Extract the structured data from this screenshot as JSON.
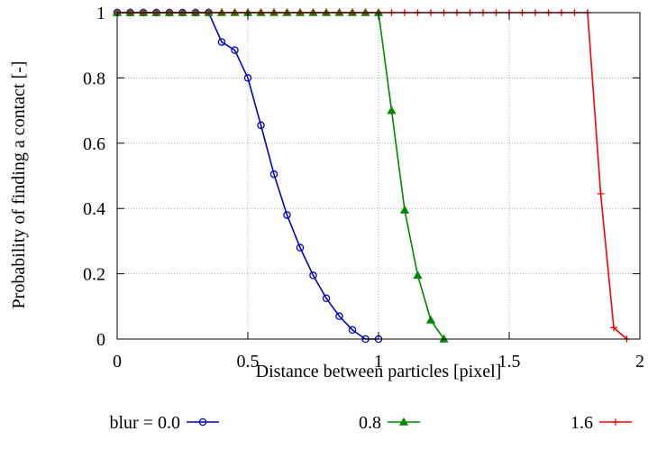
{
  "chart_data": {
    "type": "line",
    "title": "",
    "xlabel": "Distance between particles [pixel]",
    "ylabel": "Probability of finding a contact [-]",
    "xlim": [
      0,
      2
    ],
    "ylim": [
      0,
      1
    ],
    "xticks": [
      0,
      0.5,
      1,
      1.5,
      2
    ],
    "yticks": [
      0,
      0.2,
      0.4,
      0.6,
      0.8,
      1
    ],
    "xtick_labels": [
      "0",
      "0.5",
      "1",
      "1.5",
      "2"
    ],
    "ytick_labels": [
      "0",
      "0.2",
      "0.4",
      "0.6",
      "0.8",
      "1"
    ],
    "grid": true,
    "legend_position": "bottom",
    "series": [
      {
        "name": "blur = 0.0",
        "color": "#0000cc",
        "marker": "circle",
        "x": [
          0,
          0.05,
          0.1,
          0.15,
          0.2,
          0.25,
          0.3,
          0.35,
          0.4,
          0.45,
          0.5,
          0.55,
          0.6,
          0.65,
          0.7,
          0.75,
          0.8,
          0.85,
          0.9,
          0.95,
          1.0
        ],
        "y": [
          1,
          1,
          1,
          1,
          1,
          1,
          1,
          1,
          0.91,
          0.885,
          0.8,
          0.655,
          0.505,
          0.38,
          0.28,
          0.195,
          0.125,
          0.07,
          0.028,
          0.0,
          0.0
        ]
      },
      {
        "name": "0.8",
        "color": "#008800",
        "marker": "triangle",
        "x": [
          0,
          0.05,
          0.1,
          0.15,
          0.2,
          0.25,
          0.3,
          0.35,
          0.4,
          0.45,
          0.5,
          0.55,
          0.6,
          0.65,
          0.7,
          0.75,
          0.8,
          0.85,
          0.9,
          0.95,
          1.0,
          1.05,
          1.1,
          1.15,
          1.2,
          1.25
        ],
        "y": [
          1,
          1,
          1,
          1,
          1,
          1,
          1,
          1,
          1,
          1,
          1,
          1,
          1,
          1,
          1,
          1,
          1,
          1,
          1,
          1,
          1,
          0.7,
          0.395,
          0.195,
          0.058,
          0.0
        ]
      },
      {
        "name": "1.6",
        "color": "#ff0000",
        "marker": "plus",
        "x": [
          0,
          0.05,
          0.1,
          0.15,
          0.2,
          0.25,
          0.3,
          0.35,
          0.4,
          0.45,
          0.5,
          0.55,
          0.6,
          0.65,
          0.7,
          0.75,
          0.8,
          0.85,
          0.9,
          0.95,
          1.0,
          1.05,
          1.1,
          1.15,
          1.2,
          1.25,
          1.3,
          1.35,
          1.4,
          1.45,
          1.5,
          1.55,
          1.6,
          1.65,
          1.7,
          1.75,
          1.8,
          1.85,
          1.9,
          1.95
        ],
        "y": [
          1,
          1,
          1,
          1,
          1,
          1,
          1,
          1,
          1,
          1,
          1,
          1,
          1,
          1,
          1,
          1,
          1,
          1,
          1,
          1,
          1,
          1,
          1,
          1,
          1,
          1,
          1,
          1,
          1,
          1,
          1,
          1,
          1,
          1,
          1,
          1,
          1,
          0.445,
          0.035,
          0.0
        ]
      }
    ]
  }
}
